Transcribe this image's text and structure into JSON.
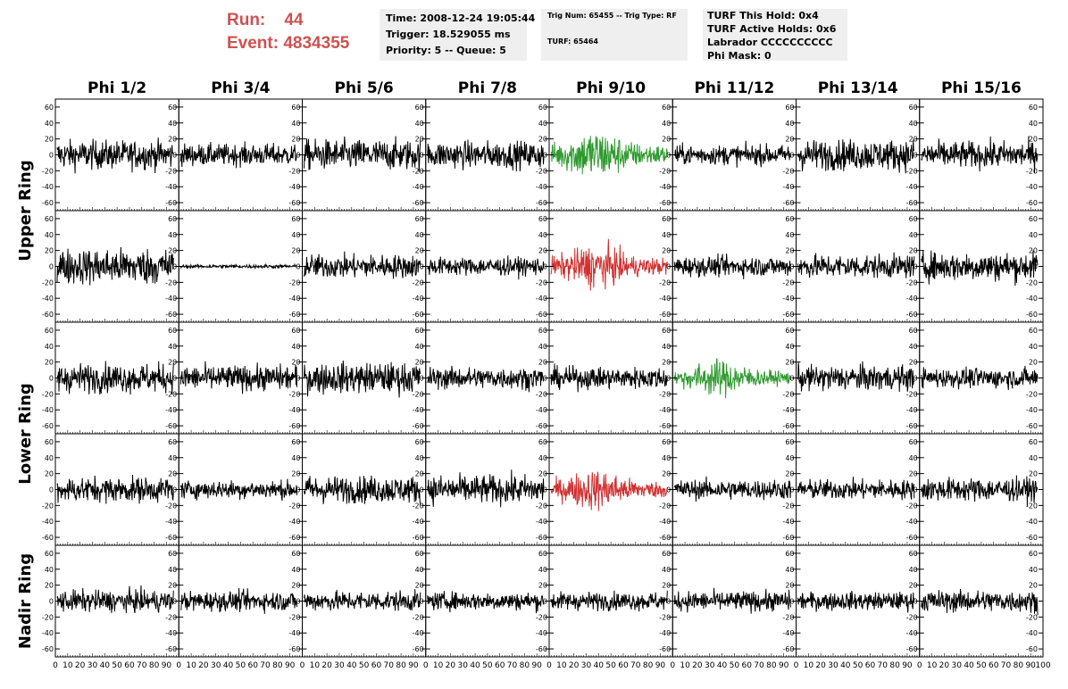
{
  "header": {
    "run_label": "Run:",
    "run_value": "44",
    "event_label": "Event:",
    "event_value": "4834355",
    "time": "Time: 2008-12-24 19:05:44",
    "trigger": "Trigger: 18.529055 ms",
    "priority": "Priority: 5 -- Queue: 5",
    "trig_num": "Trig Num: 65455 -- Trig Type: RF",
    "turf": "TURF: 65464",
    "turf_this_hold": "TURF This Hold: 0x4",
    "turf_active_holds": "TURF Active Holds: 0x6",
    "labrador": "Labrador CCCCCCCCCC",
    "phi_mask": "Phi Mask: 0"
  },
  "colors": {
    "normal": "#000000",
    "green": "#2e9a2e",
    "red": "#d03030",
    "header_red": "#d05050"
  },
  "chart_data": {
    "type": "line",
    "columns": [
      "Phi 1/2",
      "Phi 3/4",
      "Phi 5/6",
      "Phi 7/8",
      "Phi 9/10",
      "Phi 11/12",
      "Phi 13/14",
      "Phi 15/16"
    ],
    "ring_labels": [
      "Upper Ring",
      "Lower Ring",
      "Nadir Ring"
    ],
    "ring_spans": [
      [
        0,
        1
      ],
      [
        2,
        3
      ],
      [
        4,
        4
      ]
    ],
    "ylim": [
      -70,
      70
    ],
    "yticks": [
      -60,
      -40,
      -20,
      0,
      20,
      40,
      60
    ],
    "xlim": [
      0,
      100
    ],
    "xticks": [
      0,
      10,
      20,
      30,
      40,
      50,
      60,
      70,
      80,
      90,
      100
    ],
    "samples_per_trace": 260,
    "traces": [
      [
        {
          "amp": 16,
          "color": "normal"
        },
        {
          "amp": 12,
          "color": "normal"
        },
        {
          "amp": 17,
          "color": "normal"
        },
        {
          "amp": 15,
          "color": "normal"
        },
        {
          "amp": 20,
          "color": "green"
        },
        {
          "amp": 11,
          "color": "normal"
        },
        {
          "amp": 17,
          "color": "normal"
        },
        {
          "amp": 15,
          "color": "normal"
        }
      ],
      [
        {
          "amp": 20,
          "color": "normal"
        },
        {
          "amp": 2,
          "color": "normal"
        },
        {
          "amp": 13,
          "color": "normal"
        },
        {
          "amp": 10,
          "color": "normal"
        },
        {
          "amp": 17,
          "color": "red"
        },
        {
          "amp": 11,
          "color": "normal"
        },
        {
          "amp": 13,
          "color": "normal"
        },
        {
          "amp": 16,
          "color": "normal"
        }
      ],
      [
        {
          "amp": 16,
          "color": "normal"
        },
        {
          "amp": 14,
          "color": "normal"
        },
        {
          "amp": 17,
          "color": "normal"
        },
        {
          "amp": 12,
          "color": "normal"
        },
        {
          "amp": 12,
          "color": "normal"
        },
        {
          "amp": 14,
          "color": "green"
        },
        {
          "amp": 14,
          "color": "normal"
        },
        {
          "amp": 11,
          "color": "normal"
        }
      ],
      [
        {
          "amp": 14,
          "color": "normal"
        },
        {
          "amp": 10,
          "color": "normal"
        },
        {
          "amp": 15,
          "color": "normal"
        },
        {
          "amp": 16,
          "color": "normal"
        },
        {
          "amp": 16,
          "color": "red"
        },
        {
          "amp": 11,
          "color": "normal"
        },
        {
          "amp": 11,
          "color": "normal"
        },
        {
          "amp": 13,
          "color": "normal"
        }
      ],
      [
        {
          "amp": 12,
          "color": "normal"
        },
        {
          "amp": 11,
          "color": "normal"
        },
        {
          "amp": 11,
          "color": "normal"
        },
        {
          "amp": 10,
          "color": "normal"
        },
        {
          "amp": 10,
          "color": "normal"
        },
        {
          "amp": 11,
          "color": "normal"
        },
        {
          "amp": 10,
          "color": "normal"
        },
        {
          "amp": 12,
          "color": "normal"
        }
      ]
    ]
  }
}
